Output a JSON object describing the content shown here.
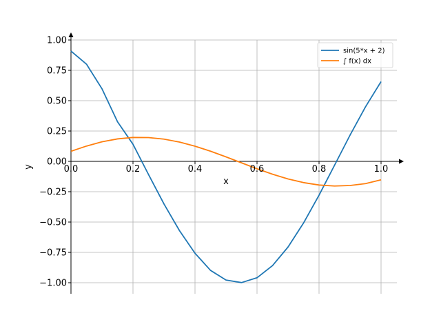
{
  "chart_data": {
    "type": "line",
    "xlabel": "x",
    "ylabel": "y",
    "xlim": [
      0.0,
      1.0
    ],
    "ylim": [
      -1.1,
      1.05
    ],
    "x_ticks": [
      0.0,
      0.2,
      0.4,
      0.6,
      0.8,
      1.0
    ],
    "x_tick_labels": [
      "0.0",
      "0.2",
      "0.4",
      "0.6",
      "0.8",
      "1.0"
    ],
    "y_ticks": [
      1.0,
      0.75,
      0.5,
      0.25,
      0.0,
      -0.25,
      -0.5,
      -0.75,
      -1.0
    ],
    "y_tick_labels": [
      "1.00",
      "0.75",
      "0.50",
      "0.25",
      "0.00",
      "−0.25",
      "−0.50",
      "−0.75",
      "−1.00"
    ],
    "grid": true,
    "legend_position": "top-right",
    "series": [
      {
        "name": "sin(5*x + 2)",
        "color": "#1f77b4",
        "x": [
          0.0,
          0.05,
          0.1,
          0.15,
          0.2,
          0.25,
          0.3,
          0.35,
          0.4,
          0.45,
          0.5,
          0.55,
          0.6,
          0.65,
          0.7,
          0.75,
          0.8,
          0.85,
          0.9,
          0.95,
          1.0
        ],
        "y": [
          0.909,
          0.801,
          0.598,
          0.327,
          0.141,
          -0.108,
          -0.351,
          -0.571,
          -0.757,
          -0.898,
          -0.978,
          -0.999,
          -0.959,
          -0.859,
          -0.706,
          -0.508,
          -0.279,
          -0.032,
          0.216,
          0.45,
          0.657
        ]
      },
      {
        "name": "∫ f(x) dx",
        "color": "#ff7f0e",
        "x": [
          0.0,
          0.05,
          0.1,
          0.15,
          0.2,
          0.25,
          0.3,
          0.35,
          0.4,
          0.45,
          0.5,
          0.55,
          0.6,
          0.65,
          0.7,
          0.75,
          0.8,
          0.85,
          0.9,
          0.95,
          1.0
        ],
        "y": [
          0.083,
          0.126,
          0.161,
          0.185,
          0.197,
          0.196,
          0.183,
          0.159,
          0.125,
          0.084,
          0.037,
          -0.012,
          -0.061,
          -0.106,
          -0.145,
          -0.175,
          -0.195,
          -0.203,
          -0.199,
          -0.183,
          -0.152
        ]
      }
    ]
  }
}
